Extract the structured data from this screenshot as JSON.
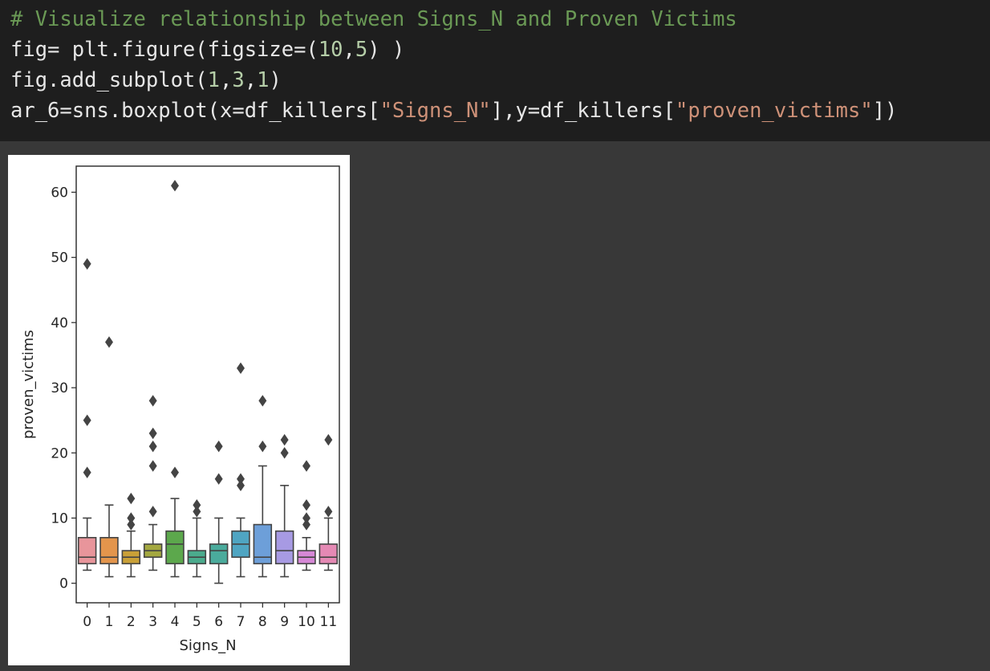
{
  "code": {
    "lines": [
      [
        {
          "t": "# Visualize relationship between Signs_N and Proven Victims",
          "k": "comment"
        }
      ],
      [
        {
          "t": "fig= plt.figure(figsize=(",
          "k": "plain"
        },
        {
          "t": "10",
          "k": "num"
        },
        {
          "t": ",",
          "k": "plain"
        },
        {
          "t": "5",
          "k": "num"
        },
        {
          "t": ") )",
          "k": "plain"
        }
      ],
      [
        {
          "t": "fig.add_subplot(",
          "k": "plain"
        },
        {
          "t": "1",
          "k": "num"
        },
        {
          "t": ",",
          "k": "plain"
        },
        {
          "t": "3",
          "k": "num"
        },
        {
          "t": ",",
          "k": "plain"
        },
        {
          "t": "1",
          "k": "num"
        },
        {
          "t": ")",
          "k": "plain"
        }
      ],
      [
        {
          "t": "ar_6=sns.boxplot(x=df_killers[",
          "k": "plain"
        },
        {
          "t": "\"Signs_N\"",
          "k": "str"
        },
        {
          "t": "],y=df_killers[",
          "k": "plain"
        },
        {
          "t": "\"proven_victims\"",
          "k": "str"
        },
        {
          "t": "])",
          "k": "plain"
        }
      ]
    ]
  },
  "chart_data": {
    "type": "box",
    "title": "",
    "xlabel": "Signs_N",
    "ylabel": "proven_victims",
    "ylim": [
      -3,
      64
    ],
    "yticks": [
      0,
      10,
      20,
      30,
      40,
      50,
      60
    ],
    "categories": [
      "0",
      "1",
      "2",
      "3",
      "4",
      "5",
      "6",
      "7",
      "8",
      "9",
      "10",
      "11"
    ],
    "boxes": [
      {
        "category": "0",
        "whisker_low": 2,
        "q1": 3,
        "median": 4,
        "q3": 7,
        "whisker_high": 10,
        "outliers": [
          17,
          25,
          49
        ],
        "color": "#e8959b"
      },
      {
        "category": "1",
        "whisker_low": 1,
        "q1": 3,
        "median": 4,
        "q3": 7,
        "whisker_high": 12,
        "outliers": [
          37
        ],
        "color": "#e3954c"
      },
      {
        "category": "2",
        "whisker_low": 1,
        "q1": 3,
        "median": 4,
        "q3": 5,
        "whisker_high": 8,
        "outliers": [
          9,
          10,
          13
        ],
        "color": "#c9a037"
      },
      {
        "category": "3",
        "whisker_low": 2,
        "q1": 4,
        "median": 5,
        "q3": 6,
        "whisker_high": 9,
        "outliers": [
          11,
          18,
          21,
          23,
          28
        ],
        "color": "#a4a840"
      },
      {
        "category": "4",
        "whisker_low": 1,
        "q1": 3,
        "median": 6,
        "q3": 8,
        "whisker_high": 13,
        "outliers": [
          17,
          61
        ],
        "color": "#5ca84c"
      },
      {
        "category": "5",
        "whisker_low": 1,
        "q1": 3,
        "median": 4,
        "q3": 5,
        "whisker_high": 10,
        "outliers": [
          11,
          12
        ],
        "color": "#4bab8d"
      },
      {
        "category": "6",
        "whisker_low": 0,
        "q1": 3,
        "median": 5,
        "q3": 6,
        "whisker_high": 10,
        "outliers": [
          16,
          21
        ],
        "color": "#4aab9c"
      },
      {
        "category": "7",
        "whisker_low": 1,
        "q1": 4,
        "median": 6,
        "q3": 8,
        "whisker_high": 10,
        "outliers": [
          15,
          16,
          33
        ],
        "color": "#4fa5c2"
      },
      {
        "category": "8",
        "whisker_low": 1,
        "q1": 3,
        "median": 4,
        "q3": 9,
        "whisker_high": 18,
        "outliers": [
          21,
          28
        ],
        "color": "#6d9fd9"
      },
      {
        "category": "9",
        "whisker_low": 1,
        "q1": 3,
        "median": 5,
        "q3": 8,
        "whisker_high": 15,
        "outliers": [
          20,
          22
        ],
        "color": "#a79ae3"
      },
      {
        "category": "10",
        "whisker_low": 2,
        "q1": 3,
        "median": 4,
        "q3": 5,
        "whisker_high": 7,
        "outliers": [
          9,
          10,
          12,
          18
        ],
        "color": "#d688d6"
      },
      {
        "category": "11",
        "whisker_low": 2,
        "q1": 3,
        "median": 4,
        "q3": 6,
        "whisker_high": 10,
        "outliers": [
          11,
          22
        ],
        "color": "#e589b4"
      }
    ]
  }
}
